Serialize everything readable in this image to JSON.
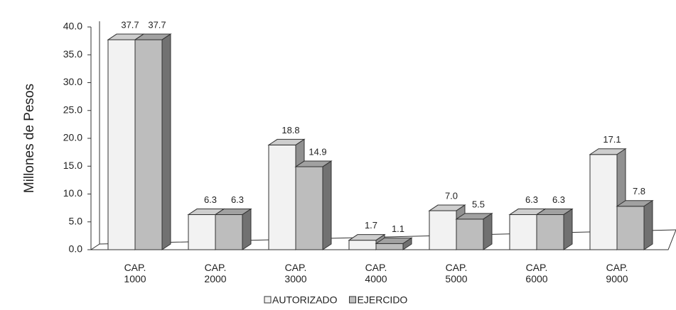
{
  "chart_data": {
    "type": "bar3d",
    "y_label": "Millones de Pesos",
    "categories": [
      "CAP. 1000",
      "CAP. 2000",
      "CAP. 3000",
      "CAP. 4000",
      "CAP. 5000",
      "CAP. 6000",
      "CAP. 9000"
    ],
    "series": [
      {
        "name": "AUTORIZADO",
        "color": "#f2f2f2",
        "values": [
          37.7,
          6.3,
          18.8,
          1.7,
          7.0,
          6.3,
          17.1
        ],
        "value_labels": [
          "37.7",
          "6.3",
          "18.8",
          "1.7",
          "7.0",
          "6.3",
          "17.1"
        ]
      },
      {
        "name": "EJERCIDO",
        "color": "#bdbdbd",
        "values": [
          37.7,
          6.3,
          14.9,
          1.1,
          5.5,
          6.3,
          7.8
        ],
        "value_labels": [
          "37.7",
          "6.3",
          "14.9",
          "1.1",
          "5.5",
          "6.3",
          "7.8"
        ]
      }
    ],
    "ylim": [
      0,
      40
    ],
    "yticks": [
      {
        "value": 0,
        "label": "0.0"
      },
      {
        "value": 5,
        "label": "5.0"
      },
      {
        "value": 10,
        "label": "10.0"
      },
      {
        "value": 15,
        "label": "15.0"
      },
      {
        "value": 20,
        "label": "20.0"
      },
      {
        "value": 25,
        "label": "25.0"
      },
      {
        "value": 30,
        "label": "30.0"
      },
      {
        "value": 35,
        "label": "35.0"
      },
      {
        "value": 40,
        "label": "40.0"
      }
    ]
  }
}
